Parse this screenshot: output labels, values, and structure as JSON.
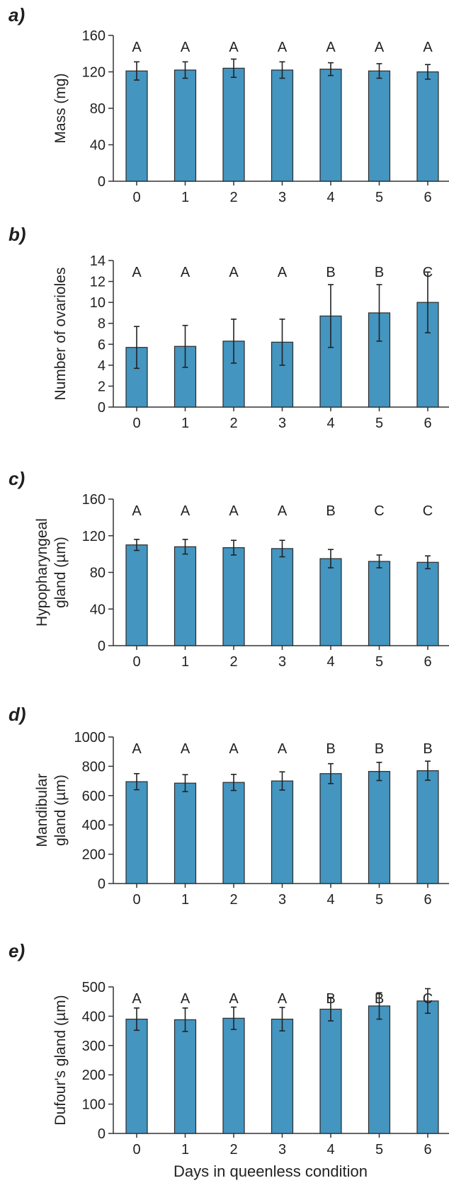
{
  "colors": {
    "bar": "#4495c0",
    "axis": "#333333"
  },
  "x_label": "Days in queenless condition",
  "chart_data": [
    {
      "type": "bar",
      "panel": "a)",
      "ylabel": [
        "Mass (mg)"
      ],
      "ylim": [
        0,
        160
      ],
      "yticks": [
        0,
        40,
        80,
        120,
        160
      ],
      "categories": [
        "0",
        "1",
        "2",
        "3",
        "4",
        "5",
        "6"
      ],
      "values": [
        121,
        122,
        124,
        122,
        123,
        121,
        120
      ],
      "errors": [
        10,
        9,
        10,
        9,
        7,
        8,
        8
      ],
      "letters": [
        "A",
        "A",
        "A",
        "A",
        "A",
        "A",
        "A"
      ]
    },
    {
      "type": "bar",
      "panel": "b)",
      "ylabel": [
        "Number of ovarioles"
      ],
      "ylim": [
        0,
        14
      ],
      "yticks": [
        0,
        2,
        4,
        6,
        8,
        10,
        12,
        14
      ],
      "categories": [
        "0",
        "1",
        "2",
        "3",
        "4",
        "5",
        "6"
      ],
      "values": [
        5.7,
        5.8,
        6.3,
        6.2,
        8.7,
        9.0,
        10.0
      ],
      "errors": [
        2.0,
        2.0,
        2.1,
        2.2,
        3.0,
        2.7,
        2.9
      ],
      "letters": [
        "A",
        "A",
        "A",
        "A",
        "B",
        "B",
        "C"
      ]
    },
    {
      "type": "bar",
      "panel": "c)",
      "ylabel": [
        "Hypopharyngeal",
        "gland (µm)"
      ],
      "ylim": [
        0,
        160
      ],
      "yticks": [
        0,
        40,
        80,
        120,
        160
      ],
      "categories": [
        "0",
        "1",
        "2",
        "3",
        "4",
        "5",
        "6"
      ],
      "values": [
        110,
        108,
        107,
        106,
        95,
        92,
        91
      ],
      "errors": [
        6,
        8,
        8,
        9,
        10,
        7,
        7
      ],
      "letters": [
        "A",
        "A",
        "A",
        "A",
        "B",
        "C",
        "C"
      ]
    },
    {
      "type": "bar",
      "panel": "d)",
      "ylabel": [
        "Mandibular",
        "gland (µm)"
      ],
      "ylim": [
        0,
        1000
      ],
      "yticks": [
        0,
        200,
        400,
        600,
        800,
        1000
      ],
      "categories": [
        "0",
        "1",
        "2",
        "3",
        "4",
        "5",
        "6"
      ],
      "values": [
        695,
        685,
        690,
        700,
        750,
        765,
        770
      ],
      "errors": [
        55,
        58,
        55,
        62,
        68,
        62,
        65
      ],
      "letters": [
        "A",
        "A",
        "A",
        "A",
        "B",
        "B",
        "B"
      ]
    },
    {
      "type": "bar",
      "panel": "e)",
      "ylabel": [
        "Dufour's gland (µm)"
      ],
      "ylim": [
        0,
        500
      ],
      "yticks": [
        0,
        100,
        200,
        300,
        400,
        500
      ],
      "categories": [
        "0",
        "1",
        "2",
        "3",
        "4",
        "5",
        "6"
      ],
      "values": [
        390,
        388,
        393,
        390,
        424,
        435,
        452
      ],
      "errors": [
        38,
        40,
        38,
        40,
        40,
        45,
        42
      ],
      "letters": [
        "A",
        "A",
        "A",
        "A",
        "B",
        "B",
        "C"
      ]
    }
  ]
}
